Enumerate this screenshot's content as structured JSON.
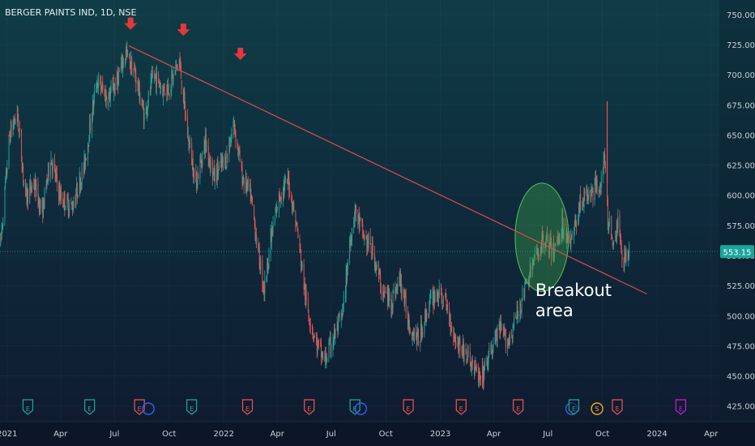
{
  "header": {
    "symbol_label": "BERGER PAINTS IND, 1D, NSE"
  },
  "colors": {
    "bull": "#26a69a",
    "bear": "#ef5350",
    "trendline": "#e04a4a",
    "arrow": "#e5383b",
    "price_tag": "#1aa59b",
    "breakout_fill": "#3fb04a",
    "event_teal": "#26a69a",
    "event_red": "#ef5350",
    "event_blue": "#2962ff",
    "event_orange": "#f5a623",
    "event_purple": "#c71fd6"
  },
  "chart_data": {
    "type": "candlestick",
    "title": "",
    "x_range": [
      "2020-12-20",
      "2024-04-15"
    ],
    "y_range": [
      412,
      762
    ],
    "x_ticks": [
      {
        "date": "2021-01-01",
        "label": "2021"
      },
      {
        "date": "2021-04-01",
        "label": "Apr"
      },
      {
        "date": "2021-07-01",
        "label": "Jul"
      },
      {
        "date": "2021-10-01",
        "label": "Oct"
      },
      {
        "date": "2022-01-01",
        "label": "2022"
      },
      {
        "date": "2022-04-01",
        "label": "Apr"
      },
      {
        "date": "2022-07-01",
        "label": "Jul"
      },
      {
        "date": "2022-10-01",
        "label": "Oct"
      },
      {
        "date": "2023-01-01",
        "label": "2023"
      },
      {
        "date": "2023-04-01",
        "label": "Apr"
      },
      {
        "date": "2023-07-01",
        "label": "Jul"
      },
      {
        "date": "2023-10-01",
        "label": "Oct"
      },
      {
        "date": "2024-01-01",
        "label": "2024"
      },
      {
        "date": "2024-04-01",
        "label": "Apr"
      }
    ],
    "y_ticks": [
      425,
      450,
      475,
      500,
      525,
      550,
      575,
      600,
      625,
      650,
      675,
      700,
      725,
      750
    ],
    "last_price": {
      "value": 553.15,
      "label": "553.15"
    },
    "path_points": [
      [
        "2020-12-21",
        560
      ],
      [
        "2021-01-05",
        650
      ],
      [
        "2021-01-18",
        668
      ],
      [
        "2021-02-01",
        598
      ],
      [
        "2021-02-15",
        610
      ],
      [
        "2021-03-01",
        585
      ],
      [
        "2021-03-15",
        632
      ],
      [
        "2021-04-01",
        598
      ],
      [
        "2021-04-20",
        590
      ],
      [
        "2021-05-10",
        622
      ],
      [
        "2021-06-01",
        695
      ],
      [
        "2021-06-20",
        680
      ],
      [
        "2021-07-05",
        695
      ],
      [
        "2021-07-20",
        718
      ],
      [
        "2021-08-05",
        700
      ],
      [
        "2021-08-20",
        665
      ],
      [
        "2021-09-05",
        700
      ],
      [
        "2021-09-20",
        688
      ],
      [
        "2021-10-01",
        690
      ],
      [
        "2021-10-18",
        712
      ],
      [
        "2021-11-01",
        650
      ],
      [
        "2021-11-15",
        610
      ],
      [
        "2021-12-01",
        645
      ],
      [
        "2021-12-15",
        615
      ],
      [
        "2022-01-05",
        630
      ],
      [
        "2022-01-18",
        660
      ],
      [
        "2022-02-01",
        615
      ],
      [
        "2022-02-15",
        600
      ],
      [
        "2022-03-01",
        550
      ],
      [
        "2022-03-10",
        522
      ],
      [
        "2022-03-20",
        560
      ],
      [
        "2022-04-05",
        600
      ],
      [
        "2022-04-20",
        612
      ],
      [
        "2022-05-05",
        570
      ],
      [
        "2022-05-20",
        510
      ],
      [
        "2022-06-05",
        478
      ],
      [
        "2022-06-20",
        462
      ],
      [
        "2022-07-05",
        482
      ],
      [
        "2022-07-20",
        500
      ],
      [
        "2022-08-01",
        560
      ],
      [
        "2022-08-10",
        588
      ],
      [
        "2022-08-25",
        565
      ],
      [
        "2022-09-10",
        552
      ],
      [
        "2022-09-25",
        520
      ],
      [
        "2022-10-10",
        512
      ],
      [
        "2022-10-25",
        530
      ],
      [
        "2022-11-10",
        492
      ],
      [
        "2022-11-25",
        480
      ],
      [
        "2022-12-10",
        505
      ],
      [
        "2022-12-25",
        520
      ],
      [
        "2023-01-10",
        510
      ],
      [
        "2023-01-25",
        482
      ],
      [
        "2023-02-10",
        470
      ],
      [
        "2023-02-25",
        458
      ],
      [
        "2023-03-10",
        445
      ],
      [
        "2023-03-25",
        468
      ],
      [
        "2023-04-10",
        488
      ],
      [
        "2023-04-25",
        478
      ],
      [
        "2023-05-10",
        500
      ],
      [
        "2023-05-25",
        525
      ],
      [
        "2023-06-10",
        548
      ],
      [
        "2023-06-25",
        565
      ],
      [
        "2023-07-10",
        552
      ],
      [
        "2023-07-25",
        575
      ],
      [
        "2023-08-10",
        562
      ],
      [
        "2023-08-25",
        595
      ],
      [
        "2023-09-10",
        600
      ],
      [
        "2023-09-25",
        610
      ],
      [
        "2023-10-01",
        612
      ],
      [
        "2023-10-05",
        632
      ],
      [
        "2023-10-10",
        580
      ],
      [
        "2023-10-20",
        560
      ],
      [
        "2023-10-28",
        578
      ],
      [
        "2023-11-05",
        545
      ],
      [
        "2023-11-12",
        555
      ],
      [
        "2023-11-15",
        553
      ]
    ],
    "spikes": [
      {
        "date": "2023-10-09",
        "high": 678,
        "low": 610
      },
      {
        "date": "2023-03-13",
        "high": 465,
        "low": 440
      }
    ],
    "trendline": {
      "start": [
        "2021-07-25",
        724
      ],
      "end": [
        "2023-12-15",
        518
      ]
    },
    "arrows": [
      {
        "date": "2021-07-28",
        "price": 740
      },
      {
        "date": "2021-10-25",
        "price": 735
      },
      {
        "date": "2022-01-29",
        "price": 715
      }
    ],
    "breakout_zone": {
      "center": [
        "2023-06-21",
        565
      ],
      "radius_days": 45,
      "radius_price": 45
    },
    "annotation": {
      "lines": [
        "Breakout",
        "area"
      ],
      "anchor": [
        "2023-06-10",
        525
      ]
    },
    "events": [
      {
        "date": "2021-02-05",
        "label": "E",
        "color": "event_teal",
        "shape": "pentagon"
      },
      {
        "date": "2021-05-20",
        "label": "E",
        "color": "event_teal",
        "shape": "pentagon"
      },
      {
        "date": "2021-08-12",
        "label": "E",
        "color": "event_red",
        "shape": "pentagon"
      },
      {
        "date": "2021-08-27",
        "label": "",
        "color": "event_blue",
        "shape": "circle"
      },
      {
        "date": "2021-11-08",
        "label": "E",
        "color": "event_teal",
        "shape": "pentagon"
      },
      {
        "date": "2022-02-10",
        "label": "E",
        "color": "event_red",
        "shape": "pentagon"
      },
      {
        "date": "2022-05-25",
        "label": "E",
        "color": "event_red",
        "shape": "pentagon"
      },
      {
        "date": "2022-08-10",
        "label": "E",
        "color": "event_teal",
        "shape": "pentagon"
      },
      {
        "date": "2022-08-20",
        "label": "",
        "color": "event_blue",
        "shape": "circle"
      },
      {
        "date": "2022-11-08",
        "label": "E",
        "color": "event_red",
        "shape": "pentagon"
      },
      {
        "date": "2023-02-05",
        "label": "E",
        "color": "event_red",
        "shape": "pentagon"
      },
      {
        "date": "2023-05-12",
        "label": "E",
        "color": "event_red",
        "shape": "pentagon"
      },
      {
        "date": "2023-08-10",
        "label": "",
        "color": "event_blue",
        "shape": "circle"
      },
      {
        "date": "2023-08-14",
        "label": "E",
        "color": "event_teal",
        "shape": "pentagon"
      },
      {
        "date": "2023-09-22",
        "label": "S",
        "color": "event_orange",
        "shape": "circle"
      },
      {
        "date": "2023-10-26",
        "label": "E",
        "color": "event_red",
        "shape": "pentagon"
      },
      {
        "date": "2024-02-10",
        "label": "E",
        "color": "event_purple",
        "shape": "pentagon"
      }
    ]
  }
}
